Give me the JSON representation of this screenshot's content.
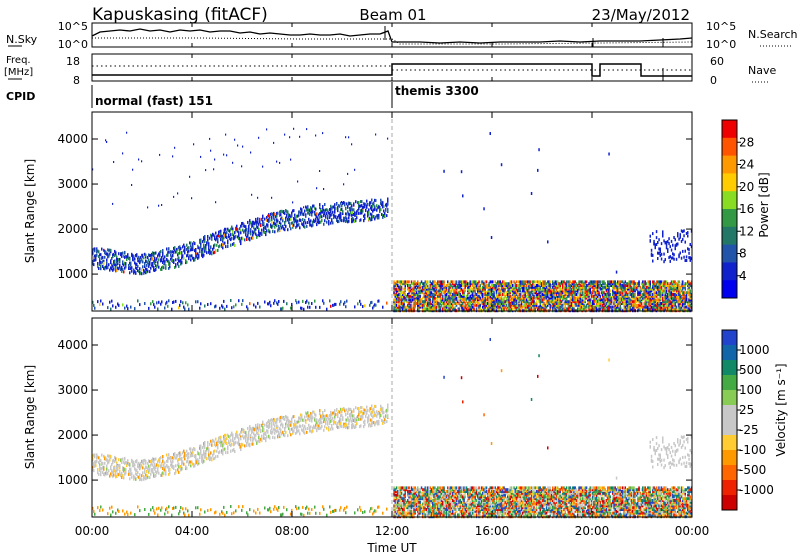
{
  "header": {
    "station_title": "Kapuskasing (fitACF)",
    "beam_title": "Beam 01",
    "date_title": "23/May/2012"
  },
  "strip": {
    "left_label_top": "N.Sky",
    "left_label_freq_1": "Freq.",
    "left_label_freq_2": "[MHz]",
    "left_label_cpid": "CPID",
    "right_label_top": "N.Search",
    "right_label_nave": "Nave",
    "noise_ticks": [
      "10^5",
      "10^0"
    ],
    "freq_ticks": [
      "18",
      "8"
    ],
    "nave_ticks": [
      "60",
      "0"
    ],
    "cpid_segments": [
      "normal (fast) 151",
      "themis 3300"
    ]
  },
  "colorbars": {
    "power": {
      "label": "Power [dB]",
      "ticks": [
        "28",
        "24",
        "20",
        "16",
        "12",
        "8",
        "4"
      ],
      "colors": [
        "#ee0000",
        "#ff5500",
        "#ff9900",
        "#ffcc00",
        "#88dd22",
        "#339944",
        "#227766",
        "#2255aa",
        "#1122cc",
        "#0000ee"
      ]
    },
    "velocity": {
      "label": "Velocity [m s⁻¹]",
      "ticks": [
        "1000",
        "500",
        "100",
        "25",
        "-25",
        "-100",
        "-500",
        "-1000"
      ],
      "colors": [
        "#2244cc",
        "#1166aa",
        "#118866",
        "#44aa44",
        "#88cc55",
        "#c8c8c8",
        "#c8c8c8",
        "#ffcc33",
        "#ff9900",
        "#ff6600",
        "#ee2200",
        "#cc0000"
      ]
    }
  },
  "axes": {
    "x_ticks": [
      "00:00",
      "04:00",
      "08:00",
      "12:00",
      "16:00",
      "20:00",
      "00:00"
    ],
    "x_label": "Time UT",
    "y_label": "Slant Range [km]",
    "y_ticks": [
      "4000",
      "3000",
      "2000",
      "1000"
    ]
  },
  "chart_data": [
    {
      "type": "heatmap",
      "title": "Kapuskasing (fitACF) Beam 01 23/May/2012",
      "parameter": "Power",
      "xlabel": "Time UT",
      "ylabel": "Slant Range [km]",
      "xlim_hours": [
        0,
        24
      ],
      "ylim_km": [
        180,
        4600
      ],
      "colorbar_label": "Power [dB]",
      "colorbar_range_dB": [
        0,
        32
      ],
      "features": [
        {
          "name": "main echo band",
          "time_hours": [
            0,
            11.8
          ],
          "range_km_start": [
            1400,
            2500
          ],
          "power_dB": [
            4,
            14
          ]
        },
        {
          "name": "near-range band",
          "time_hours": [
            12,
            24
          ],
          "range_km": [
            200,
            900
          ],
          "power_dB": [
            4,
            28
          ]
        },
        {
          "name": "late echoes",
          "time_hours": [
            22.3,
            24
          ],
          "range_km": [
            1300,
            2000
          ],
          "power_dB": [
            4,
            8
          ]
        }
      ]
    },
    {
      "type": "heatmap",
      "parameter": "Velocity",
      "xlabel": "Time UT",
      "ylabel": "Slant Range [km]",
      "xlim_hours": [
        0,
        24
      ],
      "ylim_km": [
        180,
        4600
      ],
      "colorbar_label": "Velocity [m s⁻¹]",
      "colorbar_range_ms": [
        -1000,
        1000
      ],
      "features": [
        {
          "name": "main echo band",
          "time_hours": [
            0,
            11.8
          ],
          "range_km_start": [
            1400,
            2500
          ],
          "velocity_ms": [
            -100,
            25
          ]
        },
        {
          "name": "near-range band",
          "time_hours": [
            12,
            24
          ],
          "range_km": [
            200,
            900
          ],
          "velocity_ms": [
            -1000,
            1000
          ]
        }
      ]
    },
    {
      "type": "line",
      "title": "CPID / frequency / noise strip",
      "cpid_changes": [
        {
          "time_hours": 0,
          "label": "normal (fast) 151"
        },
        {
          "time_hours": 12,
          "label": "themis 3300"
        }
      ],
      "nave_ylim": [
        0,
        60
      ],
      "freq_ylim_MHz": [
        8,
        18
      ],
      "noise_ylim": [
        "10^0",
        "10^5"
      ]
    }
  ]
}
